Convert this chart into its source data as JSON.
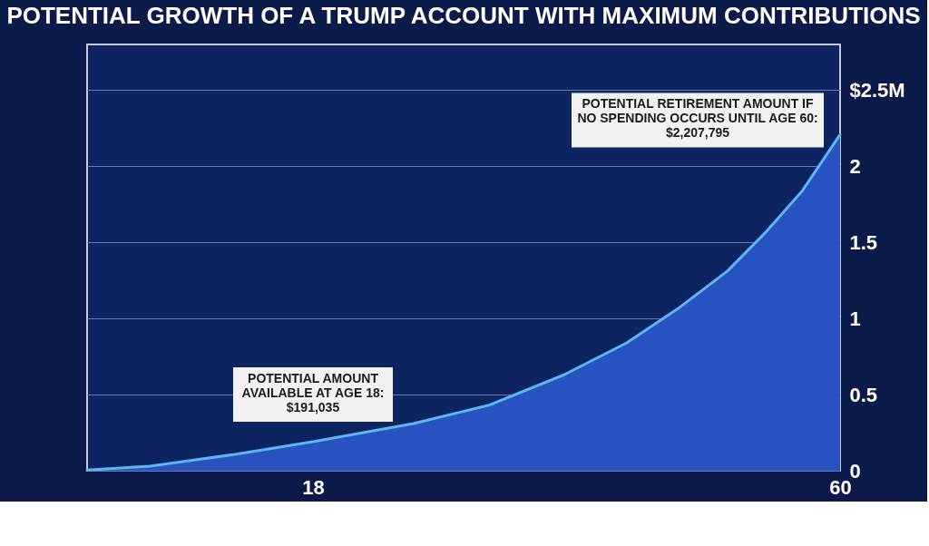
{
  "chart_data": {
    "type": "area",
    "title": "POTENTIAL GROWTH OF A TRUMP ACCOUNT WITH MAXIMUM CONTRIBUTIONS",
    "x": [
      0,
      5,
      12,
      18,
      22,
      26,
      32,
      38,
      43,
      47,
      51,
      54,
      57,
      60
    ],
    "series": [
      {
        "color": "#2752c0",
        "values": [
          0.005,
          0.03,
          0.11,
          0.191035,
          0.25,
          0.31,
          0.43,
          0.63,
          0.84,
          1.06,
          1.31,
          1.56,
          1.84,
          2.207795
        ]
      }
    ],
    "xlim": [
      0,
      60
    ],
    "xticks": [
      18,
      60
    ],
    "ylim": [
      0,
      2.8
    ],
    "yticks": [
      0,
      0.5,
      1,
      1.5,
      2,
      {
        "value": 2.5,
        "label": "$2.5M"
      }
    ],
    "grid": "y",
    "annotations": [
      {
        "text": "POTENTIAL AMOUNT\nAVAILABLE AT AGE 18:\n$191,035",
        "x": 18,
        "y": 0.191035
      },
      {
        "text": "POTENTIAL RETIREMENT AMOUNT IF\nNO SPENDING OCCURS UNTIL AGE 60:\n$2,207,795",
        "x": 60,
        "y": 2.207795
      }
    ]
  }
}
